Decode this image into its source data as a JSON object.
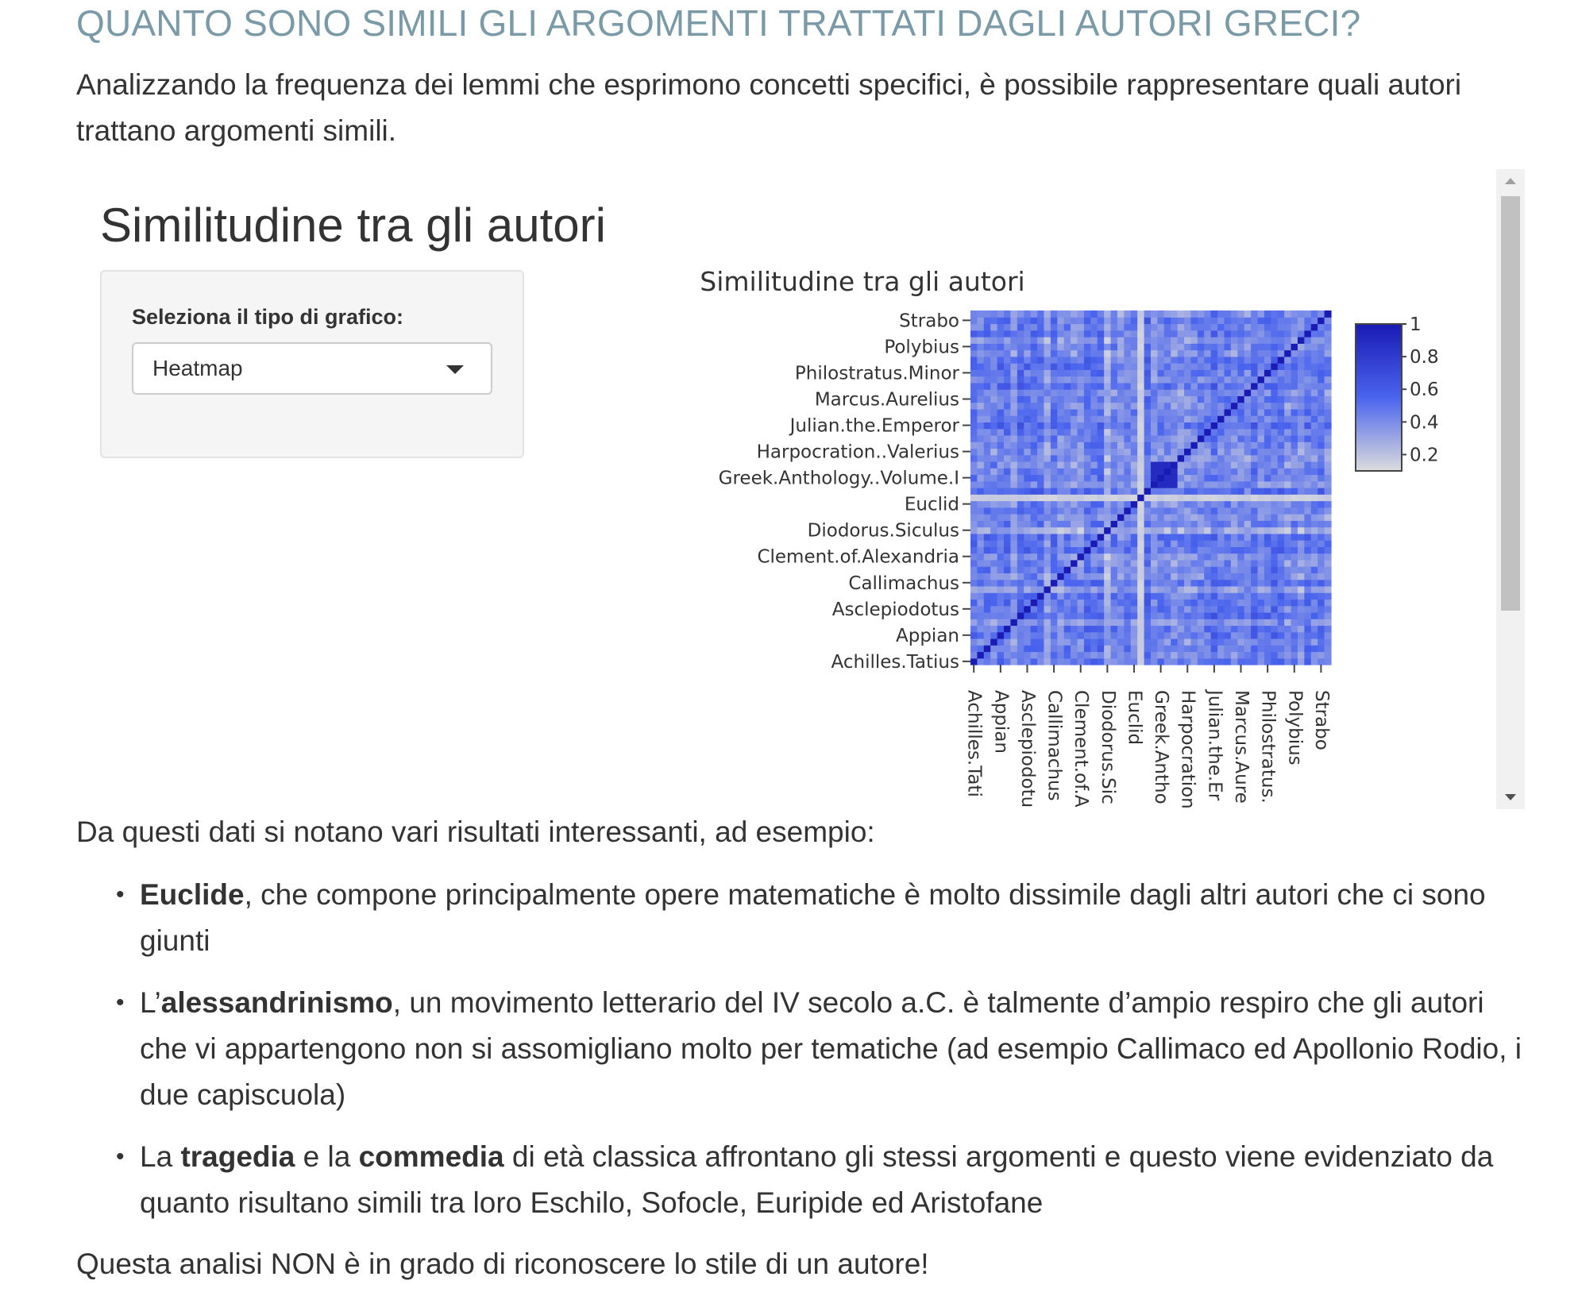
{
  "header": {
    "title": "QUANTO SONO SIMILI GLI ARGOMENTI TRATTATI DAGLI AUTORI GRECI?",
    "intro": "Analizzando la frequenza dei lemmi che esprimono concetti specifici, è possibile rappresentare quali autori trattano argomenti simili."
  },
  "app": {
    "title": "Similitudine tra gli autori",
    "select_label": "Seleziona il tipo di grafico:",
    "select_value": "Heatmap"
  },
  "chart_data": {
    "type": "heatmap",
    "title": "Similitudine tra gli autori",
    "y_tick_labels": [
      "Achilles.Tatius",
      "Appian",
      "Asclepiodotus",
      "Callimachus",
      "Clement.of.Alexandria",
      "Diodorus.Siculus",
      "Euclid",
      "Greek.Anthology..Volume.I",
      "Harpocration..Valerius",
      "Julian.the.Emperor",
      "Marcus.Aurelius",
      "Philostratus.Minor",
      "Polybius",
      "Strabo"
    ],
    "x_tick_labels": [
      "Achilles.Tati",
      "Appian",
      "Asclepiodotu",
      "Callimachus",
      "Clement.of.A",
      "Diodorus.Sic",
      "Euclid",
      "Greek.Antho",
      "Harpocration",
      "Julian.the.Er",
      "Marcus.Aure",
      "Philostratus.",
      "Polybius",
      "Strabo"
    ],
    "n_authors": 54,
    "value_range": [
      0.1,
      1
    ],
    "diagonal_value": 1,
    "colorbar": {
      "ticks": [
        {
          "value": 1,
          "label": "1"
        },
        {
          "value": 0.8,
          "label": "0.8"
        },
        {
          "value": 0.6,
          "label": "0.6"
        },
        {
          "value": 0.4,
          "label": "0.4"
        },
        {
          "value": 0.2,
          "label": "0.2"
        }
      ],
      "colors": [
        "#dcdcdc",
        "#4a64ee",
        "#1a1ab4"
      ]
    }
  },
  "findings": {
    "intro": "Da questi dati si notano vari risultati interessanti, ad esempio:",
    "item1": {
      "bold": "Euclide",
      "text": ", che compone principalmente opere matematiche è molto dissimile dagli altri autori che ci sono giunti"
    },
    "item2": {
      "prefix": "L’",
      "bold": "alessandrinismo",
      "text": ", un movimento letterario del IV secolo a.C. è talmente d’ampio respiro che gli autori che vi appartengono non si assomigliano molto per tematiche (ad esempio Callimaco ed Apollonio Rodio, i due capiscuola)"
    },
    "item3": {
      "prefix": "La ",
      "bold1": "tragedia",
      "mid": " e la ",
      "bold2": "commedia",
      "text": " di età classica affrontano gli stessi argomenti e questo viene evidenziato da quanto risultano simili tra loro Eschilo, Sofocle, Euripide ed Aristofane"
    },
    "closing": "Questa analisi NON è in grado di riconoscere lo stile di un autore!"
  }
}
